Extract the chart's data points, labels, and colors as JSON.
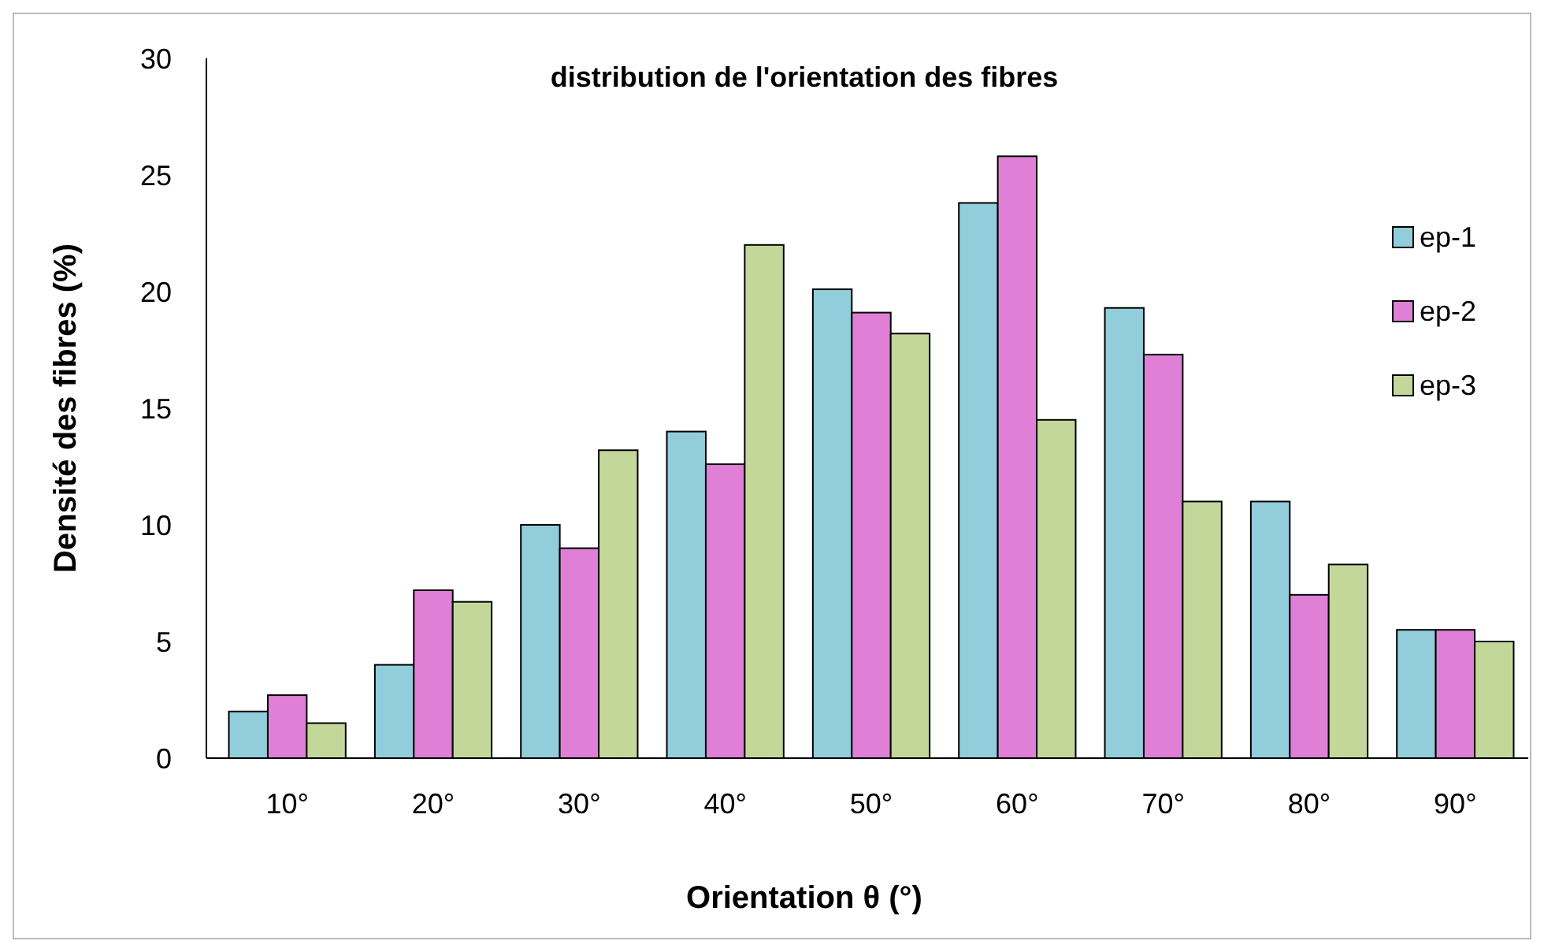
{
  "chart_data": {
    "type": "bar",
    "title": "distribution de l'orientation des fibres",
    "xlabel": "Orientation θ (°)",
    "ylabel": "Densité des fibres (%)",
    "categories": [
      "10°",
      "20°",
      "30°",
      "40°",
      "50°",
      "60°",
      "70°",
      "80°",
      "90°"
    ],
    "series": [
      {
        "name": "ep-1",
        "color": "#92cddc",
        "values": [
          2,
          4,
          10,
          14,
          20.1,
          23.8,
          19.3,
          11,
          5.5
        ]
      },
      {
        "name": "ep-2",
        "color": "#e07fd6",
        "values": [
          2.7,
          7.2,
          9,
          12.6,
          19.1,
          25.8,
          17.3,
          7,
          5.5
        ]
      },
      {
        "name": "ep-3",
        "color": "#c4d79b",
        "values": [
          1.5,
          6.7,
          13.2,
          22,
          18.2,
          14.5,
          11,
          8.3,
          5
        ]
      }
    ],
    "ylim": [
      0,
      30
    ],
    "yticks": [
      0,
      5,
      10,
      15,
      20,
      25,
      30
    ],
    "grid": false,
    "legend": "right"
  }
}
